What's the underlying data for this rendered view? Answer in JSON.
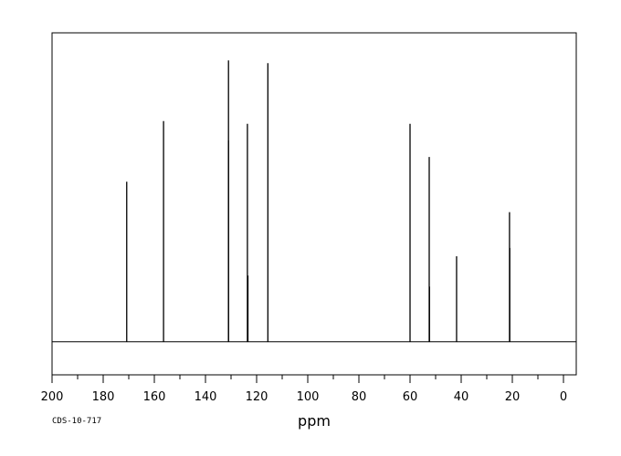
{
  "chart_data": {
    "type": "line",
    "title": "",
    "xlabel": "ppm",
    "ylabel": "",
    "xlim": [
      200,
      -5
    ],
    "ylim": [
      -0.12,
      1.12
    ],
    "x_reversed": true,
    "grid": false,
    "x_ticks": [
      200,
      180,
      160,
      140,
      120,
      100,
      80,
      60,
      40,
      20,
      0
    ],
    "x_tick_labels": [
      "200",
      "180",
      "160",
      "140",
      "120",
      "100",
      "80",
      "60",
      "40",
      "20",
      "0"
    ],
    "x_minor_step": 10,
    "peaks": [
      {
        "ppm": 170.8,
        "intensity": 0.58
      },
      {
        "ppm": 156.4,
        "intensity": 0.8
      },
      {
        "ppm": 131.0,
        "intensity": 1.02
      },
      {
        "ppm": 131.0,
        "intensity": 0.73
      },
      {
        "ppm": 123.6,
        "intensity": 0.79
      },
      {
        "ppm": 123.4,
        "intensity": 0.24
      },
      {
        "ppm": 115.6,
        "intensity": 1.01
      },
      {
        "ppm": 60.0,
        "intensity": 0.79
      },
      {
        "ppm": 52.5,
        "intensity": 0.67
      },
      {
        "ppm": 52.4,
        "intensity": 0.2
      },
      {
        "ppm": 41.8,
        "intensity": 0.31
      },
      {
        "ppm": 21.1,
        "intensity": 0.47
      },
      {
        "ppm": 21.0,
        "intensity": 0.34
      }
    ],
    "line_color": "#000000"
  },
  "footer": {
    "code": "CDS-10-717"
  }
}
